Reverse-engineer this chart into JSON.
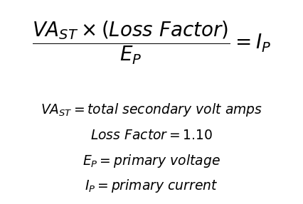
{
  "bg_color": "#ffffff",
  "text_color": "#000000",
  "formula": "$\\dfrac{VA_{ST} \\times (Loss\\ Factor)}{E_P} = I_P$",
  "def1": "$VA_{ST} = total\\ secondary\\ volt\\ amps$",
  "def2": "$Loss\\ Factor = 1.10$",
  "def3": "$E_P = primary\\ voltage$",
  "def4": "$I_P = primary\\ current$",
  "main_fontsize": 20,
  "def_fontsize": 13.5
}
